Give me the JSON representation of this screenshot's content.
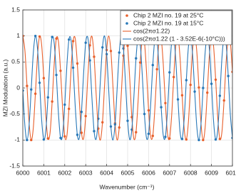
{
  "chart_data": {
    "type": "line",
    "xlabel": "Wavenumber (cm⁻¹)",
    "ylabel": "MZI Modulation (a.u.)",
    "xlim": [
      6000,
      6010
    ],
    "ylim": [
      -1.5,
      1.5
    ],
    "xticks": [
      6000,
      6001,
      6002,
      6003,
      6004,
      6005,
      6006,
      6007,
      6008,
      6009,
      6010
    ],
    "yticks": [
      -1.5,
      -1,
      -0.5,
      0,
      0.5,
      1,
      1.5
    ],
    "grid": true,
    "legend": "upper right",
    "series": [
      {
        "name": "Chip 2 MZI no. 19 at 25°C",
        "type": "scatter",
        "color": "#e8602c",
        "x": [
          6000,
          6000.2,
          6000.4,
          6000.6,
          6000.8,
          6001,
          6001.2,
          6001.4,
          6001.6,
          6001.8,
          6002,
          6002.2,
          6002.4,
          6002.6,
          6002.8,
          6003,
          6003.2,
          6003.4,
          6003.6,
          6003.8,
          6004,
          6004.2,
          6004.4,
          6004.6,
          6004.8,
          6005,
          6005.2,
          6005.4,
          6005.6,
          6005.8,
          6006,
          6006.2,
          6006.4,
          6006.6,
          6006.8,
          6007,
          6007.2,
          6007.4,
          6007.6,
          6007.8,
          6008,
          6008.2,
          6008.4,
          6008.6,
          6008.8,
          6009,
          6009.2,
          6009.4,
          6009.6,
          6009.8,
          6010
        ],
        "values": [
          1,
          0.04,
          -1,
          -0.11,
          0.99,
          0.19,
          -0.97,
          -0.26,
          0.95,
          0.33,
          -0.93,
          -0.4,
          0.9,
          0.47,
          -0.86,
          -0.54,
          0.82,
          0.6,
          -0.78,
          -0.66,
          0.73,
          0.71,
          -0.68,
          -0.76,
          0.62,
          0.81,
          -0.56,
          -0.85,
          0.49,
          0.89,
          -0.43,
          -0.92,
          0.36,
          0.95,
          -0.29,
          -0.97,
          0.21,
          0.98,
          -0.14,
          -0.99,
          0.06,
          1,
          0.01,
          -1,
          -0.09,
          0.99,
          0.16,
          -0.98,
          -0.24,
          0.96,
          0.31
        ]
      },
      {
        "name": "Chip 2 MZI no. 19 at 15°C",
        "type": "scatter",
        "color": "#2878b8",
        "x": [
          6000,
          6000.2,
          6000.4,
          6000.6,
          6000.8,
          6001,
          6001.2,
          6001.4,
          6001.6,
          6001.8,
          6002,
          6002.2,
          6002.4,
          6002.6,
          6002.8,
          6003,
          6003.2,
          6003.4,
          6003.6,
          6003.8,
          6004,
          6004.2,
          6004.4,
          6004.6,
          6004.8,
          6005,
          6005.2,
          6005.4,
          6005.6,
          6005.8,
          6006,
          6006.2,
          6006.4,
          6006.6,
          6006.8,
          6007,
          6007.2,
          6007.4,
          6007.6,
          6007.8,
          6008,
          6008.2,
          6008.4,
          6008.6,
          6008.8,
          6009,
          6009.2,
          6009.4,
          6009.6,
          6009.8,
          6010
        ],
        "values": [
          -0.05,
          -1,
          -0.03,
          1,
          0.1,
          -0.99,
          -0.18,
          0.98,
          0.25,
          -0.96,
          -0.32,
          0.93,
          0.39,
          -0.9,
          -0.46,
          0.87,
          0.53,
          -0.83,
          -0.59,
          0.78,
          0.65,
          -0.74,
          -0.7,
          0.68,
          0.76,
          -0.63,
          -0.8,
          0.57,
          0.85,
          -0.5,
          -0.88,
          0.44,
          0.92,
          -0.37,
          -0.94,
          0.3,
          0.97,
          -0.22,
          -0.98,
          0.15,
          0.99,
          -0.07,
          -1,
          0,
          1,
          0.08,
          -0.99,
          -0.15,
          0.98,
          0.23,
          -0.96
        ]
      },
      {
        "name": "cos(2πσ1.22)",
        "type": "line",
        "color": "#e8602c",
        "x": [
          6000,
          6000.1,
          6000.2,
          6000.3,
          6000.4,
          6000.5,
          6000.6,
          6000.7,
          6000.8,
          6000.9,
          6001,
          6001.1,
          6001.2,
          6001.3,
          6001.4,
          6001.5,
          6001.6,
          6001.7,
          6001.8,
          6001.9,
          6002,
          6002.1,
          6002.2,
          6002.3,
          6002.4,
          6002.5,
          6002.6,
          6002.7,
          6002.8,
          6002.9,
          6003,
          6003.1,
          6003.2,
          6003.3,
          6003.4,
          6003.5,
          6003.6,
          6003.7,
          6003.8,
          6003.9,
          6004,
          6004.1,
          6004.2,
          6004.3,
          6004.4,
          6004.5,
          6004.6,
          6004.7,
          6004.8,
          6004.9,
          6005,
          6005.1,
          6005.2,
          6005.3,
          6005.4,
          6005.5,
          6005.6,
          6005.7,
          6005.8,
          6005.9,
          6006,
          6006.1,
          6006.2,
          6006.3,
          6006.4,
          6006.5,
          6006.6,
          6006.7,
          6006.8,
          6006.9,
          6007,
          6007.1,
          6007.2,
          6007.3,
          6007.4,
          6007.5,
          6007.6,
          6007.7,
          6007.8,
          6007.9,
          6008,
          6008.1,
          6008.2,
          6008.3,
          6008.4,
          6008.5,
          6008.6,
          6008.7,
          6008.8,
          6008.9,
          6009,
          6009.1,
          6009.2,
          6009.3,
          6009.4,
          6009.5,
          6009.6,
          6009.7,
          6009.8,
          6009.9,
          6010
        ],
        "values": [
          1,
          0.72,
          0.04,
          -0.67,
          -1,
          -0.77,
          -0.11,
          0.61,
          0.99,
          0.82,
          0.19,
          -0.55,
          -0.97,
          -0.86,
          -0.26,
          0.48,
          0.95,
          0.89,
          0.33,
          -0.41,
          -0.93,
          -0.93,
          -0.4,
          0.34,
          0.9,
          0.95,
          0.47,
          -0.27,
          -0.86,
          -0.97,
          -0.54,
          0.2,
          0.82,
          0.99,
          0.6,
          -0.13,
          -0.78,
          -1,
          -0.66,
          0.05,
          0.73,
          1,
          0.71,
          0.03,
          -0.68,
          -1,
          -0.76,
          -0.1,
          0.62,
          0.99,
          0.81,
          0.18,
          -0.56,
          -0.98,
          -0.85,
          -0.25,
          0.49,
          0.96,
          0.89,
          0.32,
          -0.43,
          -0.93,
          -0.92,
          -0.39,
          0.36,
          0.9,
          0.95,
          0.46,
          -0.29,
          -0.87,
          -0.97,
          -0.53,
          0.21,
          0.83,
          0.98,
          0.59,
          -0.14,
          -0.79,
          -0.99,
          -0.65,
          0.06,
          0.74,
          1,
          0.7,
          0.01,
          -0.68,
          -1,
          -0.75,
          -0.09,
          0.63,
          0.99,
          0.8,
          0.16,
          -0.57,
          -0.98,
          -0.84,
          -0.24,
          0.5,
          0.96,
          0.88,
          0.31
        ]
      },
      {
        "name": "cos(2πσ1.22 (1 - 3.52E-6(-10°C)))",
        "type": "line",
        "color": "#2878b8",
        "x": [
          6000,
          6000.1,
          6000.2,
          6000.3,
          6000.4,
          6000.5,
          6000.6,
          6000.7,
          6000.8,
          6000.9,
          6001,
          6001.1,
          6001.2,
          6001.3,
          6001.4,
          6001.5,
          6001.6,
          6001.7,
          6001.8,
          6001.9,
          6002,
          6002.1,
          6002.2,
          6002.3,
          6002.4,
          6002.5,
          6002.6,
          6002.7,
          6002.8,
          6002.9,
          6003,
          6003.1,
          6003.2,
          6003.3,
          6003.4,
          6003.5,
          6003.6,
          6003.7,
          6003.8,
          6003.9,
          6004,
          6004.1,
          6004.2,
          6004.3,
          6004.4,
          6004.5,
          6004.6,
          6004.7,
          6004.8,
          6004.9,
          6005,
          6005.1,
          6005.2,
          6005.3,
          6005.4,
          6005.5,
          6005.6,
          6005.7,
          6005.8,
          6005.9,
          6006,
          6006.1,
          6006.2,
          6006.3,
          6006.4,
          6006.5,
          6006.6,
          6006.7,
          6006.8,
          6006.9,
          6007,
          6007.1,
          6007.2,
          6007.3,
          6007.4,
          6007.5,
          6007.6,
          6007.7,
          6007.8,
          6007.9,
          6008,
          6008.1,
          6008.2,
          6008.3,
          6008.4,
          6008.5,
          6008.6,
          6008.7,
          6008.8,
          6008.9,
          6009,
          6009.1,
          6009.2,
          6009.3,
          6009.4,
          6009.5,
          6009.6,
          6009.7,
          6009.8,
          6009.9,
          6010
        ],
        "values": [
          -0.05,
          -0.73,
          -1,
          -0.71,
          -0.03,
          0.67,
          1,
          0.76,
          0.1,
          -0.62,
          -0.99,
          -0.81,
          -0.18,
          0.56,
          0.98,
          0.85,
          0.25,
          -0.49,
          -0.96,
          -0.89,
          -0.32,
          0.42,
          0.93,
          0.92,
          0.39,
          -0.35,
          -0.9,
          -0.95,
          -0.46,
          0.28,
          0.87,
          0.97,
          0.53,
          -0.21,
          -0.83,
          -0.98,
          -0.59,
          0.14,
          0.78,
          1,
          0.65,
          -0.06,
          -0.74,
          -1,
          -0.7,
          -0.01,
          0.68,
          1,
          0.76,
          0.09,
          -0.63,
          -0.99,
          -0.8,
          -0.16,
          0.57,
          0.98,
          0.85,
          0.24,
          -0.5,
          -0.96,
          -0.88,
          -0.31,
          0.44,
          0.94,
          0.92,
          0.38,
          -0.37,
          -0.91,
          -0.94,
          -0.45,
          0.3,
          0.88,
          0.97,
          0.52,
          -0.22,
          -0.84,
          -0.98,
          -0.58,
          0.15,
          0.79,
          0.99,
          0.64,
          -0.07,
          -0.74,
          -1,
          -0.69,
          0,
          0.69,
          1,
          0.75,
          0.08,
          -0.64,
          -0.99,
          -0.8,
          -0.15,
          0.58,
          0.98,
          0.84,
          0.23,
          -0.51,
          -0.96
        ]
      }
    ]
  }
}
